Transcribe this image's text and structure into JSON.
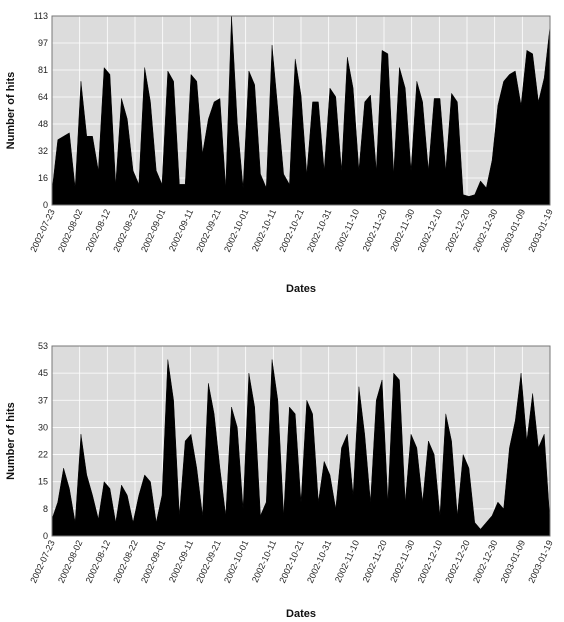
{
  "chart_data": [
    {
      "type": "area",
      "xlabel": "Dates",
      "ylabel": "Number of hits",
      "ylim": [
        0,
        110
      ],
      "yticks": [
        "0",
        "16",
        "32",
        "48",
        "64",
        "81",
        "97",
        "113"
      ],
      "x_tick_labels": [
        "2002-07-23",
        "2002-08-02",
        "2002-08-12",
        "2002-08-22",
        "2002-09-01",
        "2002-09-11",
        "2002-09-21",
        "2002-10-01",
        "2002-10-11",
        "2002-10-21",
        "2002-10-31",
        "2002-11-10",
        "2002-11-20",
        "2002-11-30",
        "2002-12-10",
        "2002-12-20",
        "2002-12-30",
        "2003-01-09",
        "2003-01-19"
      ],
      "grid": true,
      "series": [
        {
          "values": [
            8,
            38,
            40,
            42,
            10,
            72,
            40,
            40,
            20,
            80,
            76,
            12,
            62,
            50,
            20,
            12,
            80,
            60,
            20,
            12,
            78,
            72,
            12,
            12,
            76,
            72,
            30,
            50,
            60,
            62,
            10,
            110,
            48,
            10,
            78,
            70,
            18,
            10,
            93,
            56,
            18,
            12,
            85,
            64,
            18,
            60,
            60,
            20,
            68,
            63,
            20,
            86,
            68,
            20,
            60,
            64,
            20,
            90,
            88,
            18,
            80,
            68,
            20,
            72,
            60,
            20,
            62,
            62,
            20,
            65,
            60,
            6,
            5,
            6,
            14,
            10,
            26,
            58,
            72,
            76,
            78,
            58,
            90,
            88,
            60,
            74,
            104
          ]
        }
      ]
    },
    {
      "type": "area",
      "xlabel": "Dates",
      "ylabel": "Number of hits",
      "ylim": [
        0,
        56
      ],
      "yticks": [
        "0",
        "8",
        "15",
        "22",
        "30",
        "37",
        "45",
        "53"
      ],
      "x_tick_labels": [
        "2002-07-23",
        "2002-08-02",
        "2002-08-12",
        "2002-08-22",
        "2002-09-01",
        "2002-09-11",
        "2002-09-21",
        "2002-10-01",
        "2002-10-11",
        "2002-10-21",
        "2002-10-31",
        "2002-11-10",
        "2002-11-20",
        "2002-11-30",
        "2002-12-10",
        "2002-12-20",
        "2002-12-30",
        "2003-01-09",
        "2003-01-19"
      ],
      "grid": true,
      "series": [
        {
          "values": [
            5,
            10,
            20,
            14,
            4,
            30,
            18,
            12,
            5,
            16,
            14,
            4,
            15,
            12,
            4,
            12,
            18,
            16,
            4,
            12,
            52,
            40,
            6,
            28,
            30,
            20,
            6,
            45,
            36,
            20,
            6,
            38,
            32,
            8,
            48,
            38,
            6,
            10,
            52,
            40,
            6,
            38,
            36,
            10,
            40,
            36,
            10,
            22,
            18,
            8,
            26,
            30,
            12,
            44,
            30,
            10,
            40,
            46,
            10,
            48,
            46,
            10,
            30,
            26,
            10,
            28,
            24,
            6,
            36,
            28,
            6,
            24,
            20,
            4,
            2,
            4,
            6,
            10,
            8,
            26,
            34,
            48,
            28,
            42,
            26,
            30,
            4
          ]
        }
      ]
    }
  ]
}
